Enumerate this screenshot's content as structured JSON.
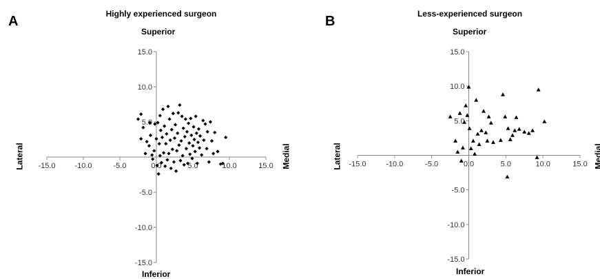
{
  "chart_data": [
    {
      "type": "scatter",
      "panel_letter": "A",
      "title": "Highly experienced surgeon",
      "axis_labels": {
        "top": "Superior",
        "bottom": "Inferior",
        "left": "Lateral",
        "right": "Medial"
      },
      "xlim": [
        -15,
        15
      ],
      "ylim": [
        -15,
        15
      ],
      "xticks": [
        -15,
        -10,
        -5,
        0,
        5,
        10,
        15
      ],
      "yticks": [
        -15,
        -10,
        -5,
        0,
        5,
        10,
        15
      ],
      "tick_labels_x": [
        "-15.0",
        "-10.0",
        "-5.0",
        "0.0",
        "5.0",
        "10.0",
        "15.0"
      ],
      "tick_labels_y": [
        "-15.0",
        "-10.0",
        "-5.0",
        "0.0",
        "5.0",
        "10.0",
        "15.0"
      ],
      "marker": "diamond",
      "grid": false,
      "points": [
        [
          -2.5,
          5.4
        ],
        [
          -2.1,
          6.1
        ],
        [
          -2.1,
          2.6
        ],
        [
          -1.8,
          4.2
        ],
        [
          -1.5,
          0.5
        ],
        [
          -1.3,
          2.2
        ],
        [
          -1.0,
          1.6
        ],
        [
          -0.8,
          3.1
        ],
        [
          -0.6,
          0.3
        ],
        [
          -0.5,
          -0.3
        ],
        [
          -0.3,
          0.9
        ],
        [
          -0.2,
          4.7
        ],
        [
          0.0,
          2.6
        ],
        [
          0.1,
          -1.2
        ],
        [
          0.2,
          4.9
        ],
        [
          0.3,
          -2.4
        ],
        [
          0.4,
          1.9
        ],
        [
          0.5,
          0.2
        ],
        [
          0.6,
          3.8
        ],
        [
          0.7,
          -0.8
        ],
        [
          0.8,
          2.8
        ],
        [
          0.9,
          6.8
        ],
        [
          1.0,
          0.6
        ],
        [
          1.1,
          4.4
        ],
        [
          1.2,
          -1.3
        ],
        [
          1.3,
          1.9
        ],
        [
          1.4,
          3.3
        ],
        [
          1.5,
          -0.4
        ],
        [
          1.6,
          7.2
        ],
        [
          1.7,
          0.5
        ],
        [
          1.8,
          5.4
        ],
        [
          1.9,
          2.4
        ],
        [
          2.0,
          -1.6
        ],
        [
          2.1,
          3.9
        ],
        [
          2.2,
          1.1
        ],
        [
          2.3,
          6.2
        ],
        [
          2.4,
          -0.7
        ],
        [
          2.5,
          2.7
        ],
        [
          2.6,
          4.6
        ],
        [
          2.7,
          -2.0
        ],
        [
          2.8,
          0.9
        ],
        [
          2.9,
          3.4
        ],
        [
          3.0,
          6.3
        ],
        [
          3.1,
          1.7
        ],
        [
          3.2,
          7.4
        ],
        [
          3.3,
          -0.5
        ],
        [
          3.4,
          2.3
        ],
        [
          3.5,
          5.8
        ],
        [
          3.6,
          0.2
        ],
        [
          3.7,
          4.1
        ],
        [
          3.8,
          -1.1
        ],
        [
          3.9,
          2.9
        ],
        [
          4.0,
          5.4
        ],
        [
          4.1,
          1.2
        ],
        [
          4.2,
          3.6
        ],
        [
          4.3,
          -0.9
        ],
        [
          4.4,
          4.8
        ],
        [
          4.5,
          2.0
        ],
        [
          4.6,
          0.4
        ],
        [
          4.7,
          5.5
        ],
        [
          4.8,
          3.1
        ],
        [
          4.9,
          -0.2
        ],
        [
          5.0,
          1.6
        ],
        [
          5.1,
          4.3
        ],
        [
          5.2,
          2.5
        ],
        [
          5.3,
          0.8
        ],
        [
          5.4,
          5.8
        ],
        [
          5.5,
          3.4
        ],
        [
          5.6,
          -0.9
        ],
        [
          5.7,
          2.1
        ],
        [
          5.8,
          4.0
        ],
        [
          5.9,
          1.3
        ],
        [
          6.0,
          3.0
        ],
        [
          6.2,
          0.3
        ],
        [
          6.4,
          5.2
        ],
        [
          6.5,
          2.4
        ],
        [
          6.7,
          4.7
        ],
        [
          6.9,
          1.2
        ],
        [
          7.0,
          3.6
        ],
        [
          7.2,
          -0.7
        ],
        [
          7.4,
          5.0
        ],
        [
          7.6,
          2.3
        ],
        [
          8.0,
          3.5
        ],
        [
          8.4,
          0.8
        ],
        [
          8.8,
          -1.0
        ],
        [
          9.5,
          2.8
        ],
        [
          9.1,
          -0.9
        ],
        [
          7.8,
          0.5
        ],
        [
          0.5,
          5.9
        ],
        [
          -0.9,
          4.9
        ]
      ]
    },
    {
      "type": "scatter",
      "panel_letter": "B",
      "title": "Less-experienced surgeon",
      "axis_labels": {
        "top": "Superior",
        "bottom": "Inferior",
        "left": "Lateral",
        "right": "Medial"
      },
      "xlim": [
        -15,
        15
      ],
      "ylim": [
        -15,
        15
      ],
      "xticks": [
        -15,
        -10,
        -5,
        0,
        5,
        10,
        15
      ],
      "yticks": [
        -15,
        -10,
        -5,
        0,
        5,
        10,
        15
      ],
      "tick_labels_x": [
        "-15.0",
        "-10.0",
        "-5.0",
        "0.0",
        "5.0",
        "10.0",
        "15.0"
      ],
      "tick_labels_y": [
        "-15.0",
        "-10.0",
        "-5.0",
        "0.0",
        "5.0",
        "10.0",
        "15.0"
      ],
      "marker": "triangle",
      "grid": false,
      "points": [
        [
          -2.5,
          5.6
        ],
        [
          -1.8,
          2.1
        ],
        [
          -1.5,
          0.5
        ],
        [
          -1.2,
          6.1
        ],
        [
          -1.0,
          -0.8
        ],
        [
          -0.8,
          1.1
        ],
        [
          -0.6,
          4.8
        ],
        [
          -0.4,
          7.2
        ],
        [
          -0.2,
          5.8
        ],
        [
          0.0,
          9.9
        ],
        [
          0.1,
          3.9
        ],
        [
          0.3,
          1.0
        ],
        [
          0.6,
          2.1
        ],
        [
          0.8,
          0.2
        ],
        [
          1.0,
          8.0
        ],
        [
          1.2,
          3.1
        ],
        [
          1.4,
          1.6
        ],
        [
          1.7,
          3.6
        ],
        [
          2.0,
          6.4
        ],
        [
          2.3,
          3.3
        ],
        [
          2.5,
          2.1
        ],
        [
          2.7,
          5.6
        ],
        [
          3.0,
          4.7
        ],
        [
          3.3,
          1.9
        ],
        [
          4.3,
          2.2
        ],
        [
          4.6,
          8.8
        ],
        [
          4.9,
          5.6
        ],
        [
          5.2,
          -3.1
        ],
        [
          5.3,
          3.9
        ],
        [
          5.6,
          2.3
        ],
        [
          5.9,
          2.9
        ],
        [
          6.2,
          3.6
        ],
        [
          6.4,
          5.5
        ],
        [
          7.5,
          3.4
        ],
        [
          8.1,
          3.2
        ],
        [
          8.6,
          3.6
        ],
        [
          9.4,
          9.5
        ],
        [
          9.2,
          -0.3
        ],
        [
          10.2,
          4.9
        ],
        [
          6.8,
          3.8
        ]
      ]
    }
  ]
}
